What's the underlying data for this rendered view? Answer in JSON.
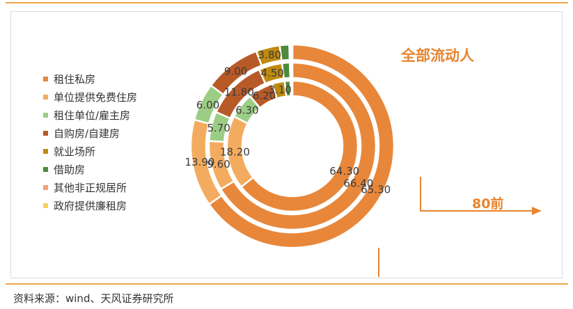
{
  "title": "全部流动人",
  "group_label": "80前",
  "source": "资料来源：wind、天风证券研究所",
  "legend": [
    {
      "label": "租住私房",
      "color": "#e8873a"
    },
    {
      "label": "单位提供免费住房",
      "color": "#f3ac5f"
    },
    {
      "label": "租住单位/雇主房",
      "color": "#9ccd84"
    },
    {
      "label": "自购房/自建房",
      "color": "#b85a27"
    },
    {
      "label": "就业场所",
      "color": "#bf8a10"
    },
    {
      "label": "借助房",
      "color": "#4f8a3c"
    },
    {
      "label": "其他非正规居所",
      "color": "#eda37b"
    },
    {
      "label": "政府提供廉租房",
      "color": "#f5d35a"
    }
  ],
  "chart_data": {
    "type": "pie",
    "subtype": "multi-ring-donut",
    "categories": [
      "租住私房",
      "单位提供免费住房",
      "租住单位/雇主房",
      "自购房/自建房",
      "就业场所",
      "借助房",
      "其他非正规居所",
      "政府提供廉租房"
    ],
    "series": [
      {
        "ring": "outer",
        "values": [
          65.3,
          13.9,
          6.0,
          9.0,
          3.8,
          1.5,
          0.3,
          0.2
        ]
      },
      {
        "ring": "middle",
        "values": [
          66.4,
          9.6,
          5.7,
          11.8,
          4.5,
          1.5,
          0.3,
          0.2
        ]
      },
      {
        "ring": "inner",
        "values": [
          64.3,
          18.2,
          6.3,
          6.2,
          3.1,
          1.4,
          0.3,
          0.2
        ]
      }
    ],
    "data_labels": [
      {
        "ring": "outer",
        "labels": [
          "65.30",
          "13.90",
          "6.00",
          "9.00",
          "3.80"
        ]
      },
      {
        "ring": "middle",
        "labels": [
          "66.40",
          "9.60",
          "5.70",
          "11.80",
          "4.50"
        ]
      },
      {
        "ring": "inner",
        "labels": [
          "64.30",
          "18.20",
          "6.30",
          "6.20",
          "3.10"
        ]
      }
    ],
    "legend_position": "left"
  }
}
